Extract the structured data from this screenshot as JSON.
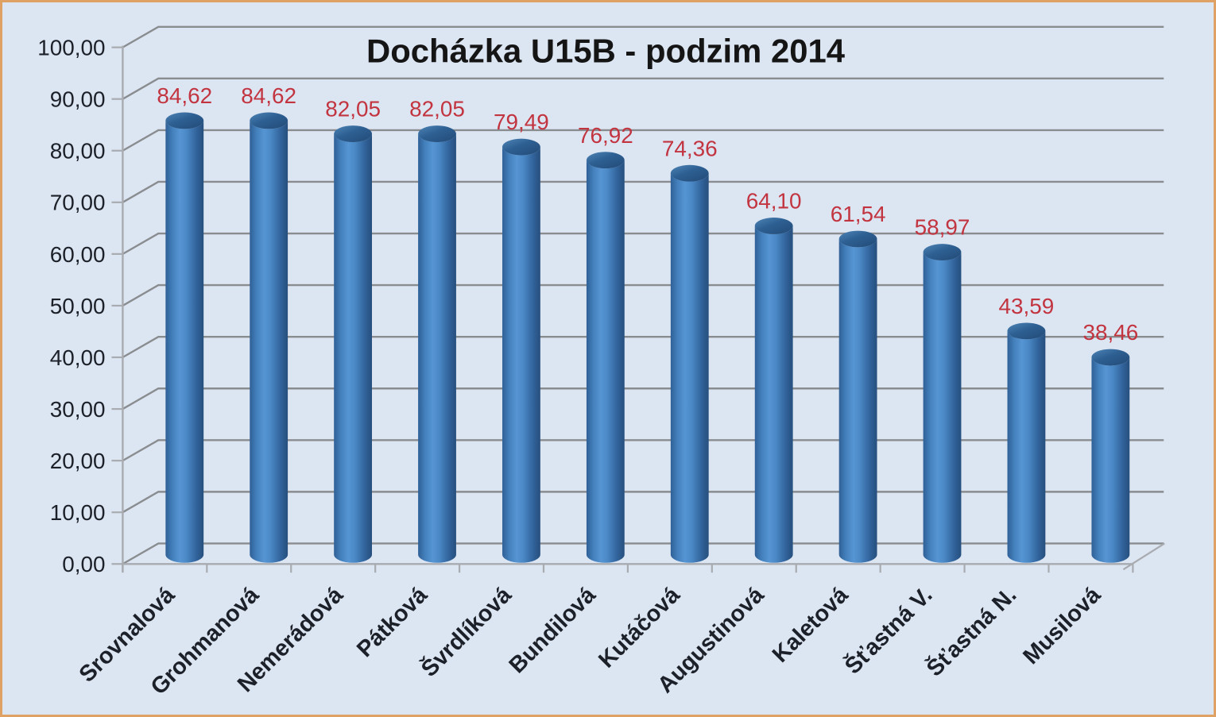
{
  "frame": {
    "border_color": "#e0a264",
    "background": "#dce5f2"
  },
  "chart_data": {
    "type": "bar",
    "subtype": "3d-cylinder-vertical",
    "title": "Docházka U15B - podzim 2014",
    "categories": [
      "Srovnalová",
      "Grohmanová",
      "Nemerádová",
      "Pátková",
      "Švrdlíková",
      "Bundilová",
      "Kutáčová",
      "Augustinová",
      "Kaletová",
      "Šťastná V.",
      "Šťastná N.",
      "Musilová"
    ],
    "values": [
      84.62,
      84.62,
      82.05,
      82.05,
      79.49,
      76.92,
      74.36,
      64.1,
      61.54,
      58.97,
      43.59,
      38.46
    ],
    "data_labels": [
      "84,62",
      "84,62",
      "82,05",
      "82,05",
      "79,49",
      "76,92",
      "74,36",
      "64,10",
      "61,54",
      "58,97",
      "43,59",
      "38,46"
    ],
    "xlabel": "",
    "ylabel": "",
    "ylim": [
      0,
      100
    ],
    "ytick_step": 10,
    "ytick_labels": [
      "0,00",
      "10,00",
      "20,00",
      "30,00",
      "40,00",
      "50,00",
      "60,00",
      "70,00",
      "80,00",
      "90,00",
      "100,00"
    ],
    "decimal_separator": ",",
    "grid": true,
    "legend": false,
    "style": {
      "title_color": "#151515",
      "text_color": "#1c2028",
      "value_label_color": "#c23540",
      "grid_color": "#8a8d90",
      "axis_color": "#a8abaf",
      "bar_edge_dark": "#264f7d",
      "bar_left_dark": "#2f6096",
      "bar_highlight": "#5695d3",
      "bar_mid": "#4a89c6",
      "bar_top_light": "#4f86b8",
      "bar_top_dark": "#234c79",
      "plot_background": "#dce5f2"
    }
  }
}
